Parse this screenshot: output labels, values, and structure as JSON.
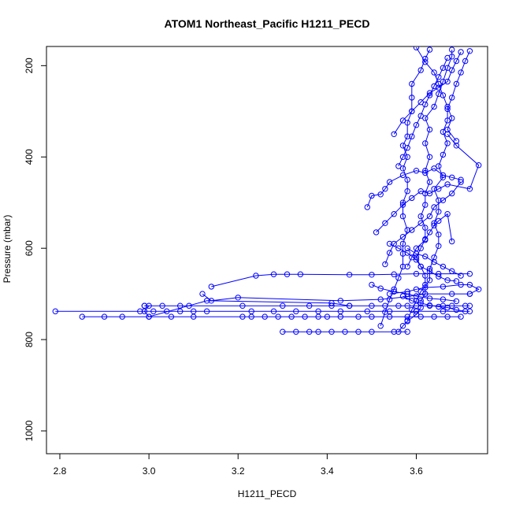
{
  "chart_data": {
    "type": "line",
    "title": "ATOM1 Northeast_Pacific H1211_PECD",
    "xlabel": "H1211_PECD",
    "ylabel": "Pressure (mbar)",
    "xlim": [
      2.77,
      3.76
    ],
    "ylim": [
      1050,
      158
    ],
    "y_reversed": true,
    "grid": false,
    "x_ticks": [
      "2.8",
      "3.0",
      "3.2",
      "3.4",
      "3.6"
    ],
    "y_ticks": [
      "200",
      "400",
      "600",
      "800",
      "1000"
    ],
    "x_tick_values": [
      2.8,
      3.0,
      3.2,
      3.4,
      3.6
    ],
    "y_tick_values": [
      200,
      400,
      600,
      800,
      1000
    ],
    "series": [
      {
        "values": [
          [
            3.58,
            783
          ],
          [
            3.55,
            783
          ],
          [
            3.5,
            783
          ],
          [
            3.47,
            783
          ],
          [
            3.44,
            783
          ],
          [
            3.41,
            783
          ],
          [
            3.38,
            783
          ],
          [
            3.36,
            783
          ],
          [
            3.33,
            783
          ],
          [
            3.3,
            783
          ]
        ]
      },
      {
        "values": [
          [
            2.79,
            738
          ],
          [
            2.98,
            738
          ],
          [
            3.01,
            738
          ],
          [
            3.04,
            738
          ],
          [
            3.07,
            738
          ],
          [
            3.1,
            738
          ],
          [
            3.13,
            738
          ],
          [
            3.23,
            738
          ],
          [
            3.28,
            738
          ],
          [
            3.33,
            738
          ],
          [
            3.38,
            738
          ],
          [
            3.43,
            738
          ],
          [
            3.49,
            738
          ],
          [
            3.54,
            738
          ],
          [
            3.6,
            738
          ],
          [
            3.66,
            738
          ],
          [
            3.72,
            738
          ]
        ]
      },
      {
        "values": [
          [
            2.85,
            750
          ],
          [
            2.9,
            750
          ],
          [
            2.94,
            750
          ],
          [
            3.0,
            750
          ],
          [
            3.05,
            750
          ],
          [
            3.1,
            750
          ],
          [
            3.21,
            750
          ],
          [
            3.23,
            750
          ],
          [
            3.26,
            750
          ],
          [
            3.29,
            750
          ],
          [
            3.32,
            750
          ],
          [
            3.35,
            750
          ],
          [
            3.38,
            750
          ],
          [
            3.4,
            750
          ],
          [
            3.43,
            750
          ],
          [
            3.47,
            750
          ],
          [
            3.5,
            750
          ],
          [
            3.54,
            750
          ],
          [
            3.58,
            750
          ],
          [
            3.61,
            750
          ],
          [
            3.64,
            750
          ],
          [
            3.67,
            750
          ],
          [
            3.7,
            750
          ]
        ]
      },
      {
        "values": [
          [
            2.99,
            726
          ],
          [
            3.03,
            726
          ],
          [
            3.07,
            726
          ],
          [
            3.09,
            726
          ],
          [
            3.21,
            726
          ],
          [
            3.3,
            726
          ],
          [
            3.36,
            726
          ],
          [
            3.41,
            726
          ],
          [
            3.45,
            726
          ],
          [
            3.5,
            726
          ],
          [
            3.53,
            726
          ],
          [
            3.56,
            726
          ],
          [
            3.58,
            726
          ],
          [
            3.6,
            726
          ],
          [
            3.63,
            726
          ],
          [
            3.66,
            726
          ],
          [
            3.68,
            726
          ],
          [
            3.71,
            726
          ],
          [
            3.72,
            726
          ]
        ]
      },
      {
        "values": [
          [
            2.99,
            726
          ],
          [
            3.0,
            726
          ],
          [
            2.99,
            738
          ],
          [
            3.0,
            750
          ],
          [
            3.13,
            715
          ],
          [
            3.41,
            720
          ],
          [
            3.45,
            726
          ]
        ]
      },
      {
        "values": [
          [
            3.12,
            700
          ],
          [
            3.14,
            715
          ],
          [
            3.2,
            708
          ],
          [
            3.43,
            715
          ],
          [
            3.52,
            712
          ],
          [
            3.58,
            706
          ],
          [
            3.62,
            700
          ],
          [
            3.68,
            700
          ],
          [
            3.72,
            700
          ]
        ]
      },
      {
        "values": [
          [
            3.14,
            684
          ],
          [
            3.24,
            660
          ],
          [
            3.28,
            657
          ],
          [
            3.31,
            657
          ],
          [
            3.34,
            657
          ],
          [
            3.45,
            658
          ],
          [
            3.5,
            658
          ],
          [
            3.55,
            657
          ],
          [
            3.6,
            656
          ],
          [
            3.65,
            656
          ],
          [
            3.72,
            656
          ]
        ]
      },
      {
        "values": [
          [
            3.54,
            700
          ],
          [
            3.58,
            695
          ],
          [
            3.6,
            690
          ],
          [
            3.62,
            686
          ],
          [
            3.66,
            684
          ],
          [
            3.7,
            680
          ],
          [
            3.72,
            680
          ],
          [
            3.74,
            690
          ],
          [
            3.72,
            700
          ]
        ]
      },
      {
        "values": [
          [
            3.56,
            783
          ],
          [
            3.57,
            770
          ],
          [
            3.58,
            760
          ],
          [
            3.6,
            745
          ],
          [
            3.61,
            730
          ],
          [
            3.61,
            715
          ],
          [
            3.62,
            700
          ],
          [
            3.62,
            680
          ],
          [
            3.62,
            660
          ],
          [
            3.61,
            640
          ],
          [
            3.6,
            620
          ],
          [
            3.61,
            600
          ],
          [
            3.62,
            580
          ],
          [
            3.62,
            555
          ],
          [
            3.61,
            530
          ],
          [
            3.62,
            505
          ],
          [
            3.62,
            480
          ],
          [
            3.63,
            455
          ],
          [
            3.62,
            430
          ],
          [
            3.63,
            400
          ],
          [
            3.62,
            370
          ],
          [
            3.63,
            340
          ],
          [
            3.62,
            315
          ],
          [
            3.64,
            290
          ],
          [
            3.65,
            262
          ],
          [
            3.66,
            235
          ],
          [
            3.67,
            205
          ],
          [
            3.68,
            180
          ],
          [
            3.68,
            165
          ]
        ]
      },
      {
        "values": [
          [
            3.52,
            770
          ],
          [
            3.53,
            740
          ],
          [
            3.54,
            712
          ],
          [
            3.55,
            690
          ],
          [
            3.56,
            665
          ],
          [
            3.57,
            640
          ],
          [
            3.57,
            612
          ],
          [
            3.57,
            590
          ],
          [
            3.58,
            560
          ],
          [
            3.57,
            530
          ],
          [
            3.57,
            500
          ],
          [
            3.58,
            475
          ],
          [
            3.58,
            450
          ],
          [
            3.57,
            425
          ],
          [
            3.58,
            400
          ],
          [
            3.57,
            375
          ],
          [
            3.58,
            355
          ],
          [
            3.58,
            325
          ],
          [
            3.59,
            300
          ],
          [
            3.59,
            270
          ],
          [
            3.59,
            240
          ],
          [
            3.61,
            210
          ],
          [
            3.62,
            185
          ],
          [
            3.63,
            165
          ]
        ]
      },
      {
        "values": [
          [
            3.58,
            758
          ],
          [
            3.59,
            735
          ],
          [
            3.6,
            715
          ],
          [
            3.61,
            695
          ],
          [
            3.63,
            670
          ],
          [
            3.63,
            645
          ],
          [
            3.64,
            620
          ],
          [
            3.65,
            595
          ],
          [
            3.65,
            570
          ],
          [
            3.64,
            545
          ],
          [
            3.65,
            520
          ],
          [
            3.65,
            495
          ],
          [
            3.64,
            470
          ],
          [
            3.66,
            445
          ],
          [
            3.65,
            420
          ],
          [
            3.66,
            395
          ],
          [
            3.67,
            370
          ],
          [
            3.66,
            345
          ],
          [
            3.67,
            320
          ],
          [
            3.67,
            295
          ],
          [
            3.68,
            270
          ],
          [
            3.69,
            240
          ],
          [
            3.7,
            215
          ],
          [
            3.71,
            190
          ],
          [
            3.72,
            168
          ]
        ]
      },
      {
        "values": [
          [
            3.49,
            510
          ],
          [
            3.5,
            485
          ],
          [
            3.52,
            482
          ],
          [
            3.53,
            470
          ],
          [
            3.54,
            455
          ],
          [
            3.57,
            440
          ],
          [
            3.6,
            430
          ],
          [
            3.62,
            435
          ],
          [
            3.64,
            425
          ],
          [
            3.66,
            440
          ],
          [
            3.68,
            445
          ],
          [
            3.7,
            450
          ]
        ]
      },
      {
        "values": [
          [
            3.51,
            565
          ],
          [
            3.53,
            545
          ],
          [
            3.55,
            525
          ],
          [
            3.57,
            505
          ],
          [
            3.59,
            490
          ],
          [
            3.61,
            475
          ],
          [
            3.63,
            480
          ],
          [
            3.65,
            470
          ],
          [
            3.67,
            460
          ],
          [
            3.72,
            470
          ],
          [
            3.74,
            418
          ],
          [
            3.69,
            375
          ],
          [
            3.67,
            350
          ]
        ]
      },
      {
        "values": [
          [
            3.53,
            635
          ],
          [
            3.54,
            610
          ],
          [
            3.55,
            590
          ],
          [
            3.57,
            575
          ],
          [
            3.59,
            560
          ],
          [
            3.61,
            545
          ],
          [
            3.63,
            530
          ],
          [
            3.64,
            510
          ],
          [
            3.66,
            495
          ],
          [
            3.68,
            480
          ],
          [
            3.7,
            455
          ]
        ]
      },
      {
        "values": [
          [
            3.55,
            350
          ],
          [
            3.57,
            320
          ],
          [
            3.59,
            300
          ],
          [
            3.61,
            280
          ],
          [
            3.63,
            260
          ],
          [
            3.65,
            248
          ],
          [
            3.67,
            235
          ],
          [
            3.68,
            210
          ],
          [
            3.69,
            190
          ],
          [
            3.7,
            170
          ]
        ]
      },
      {
        "values": [
          [
            3.56,
            420
          ],
          [
            3.57,
            400
          ],
          [
            3.58,
            380
          ],
          [
            3.59,
            355
          ],
          [
            3.6,
            330
          ],
          [
            3.61,
            310
          ],
          [
            3.62,
            285
          ],
          [
            3.63,
            265
          ],
          [
            3.64,
            245
          ],
          [
            3.65,
            225
          ],
          [
            3.66,
            205
          ],
          [
            3.67,
            183
          ]
        ]
      },
      {
        "values": [
          [
            3.58,
            600
          ],
          [
            3.6,
            612
          ],
          [
            3.62,
            618
          ],
          [
            3.64,
            630
          ],
          [
            3.66,
            640
          ],
          [
            3.68,
            650
          ],
          [
            3.7,
            660
          ]
        ]
      },
      {
        "values": [
          [
            3.57,
            705
          ],
          [
            3.59,
            715
          ],
          [
            3.61,
            720
          ],
          [
            3.63,
            725
          ],
          [
            3.65,
            728
          ],
          [
            3.67,
            730
          ],
          [
            3.69,
            735
          ],
          [
            3.71,
            738
          ]
        ]
      },
      {
        "values": [
          [
            3.5,
            680
          ],
          [
            3.52,
            688
          ],
          [
            3.55,
            695
          ],
          [
            3.58,
            700
          ],
          [
            3.6,
            705
          ],
          [
            3.63,
            710
          ],
          [
            3.66,
            712
          ],
          [
            3.69,
            716
          ]
        ]
      },
      {
        "values": [
          [
            3.6,
            160
          ],
          [
            3.62,
            192
          ],
          [
            3.64,
            215
          ],
          [
            3.65,
            240
          ],
          [
            3.66,
            265
          ],
          [
            3.67,
            290
          ],
          [
            3.68,
            315
          ],
          [
            3.67,
            340
          ],
          [
            3.69,
            365
          ]
        ]
      },
      {
        "values": [
          [
            3.58,
            640
          ],
          [
            3.59,
            620
          ],
          [
            3.6,
            600
          ],
          [
            3.62,
            582
          ],
          [
            3.63,
            565
          ],
          [
            3.64,
            550
          ],
          [
            3.65,
            540
          ],
          [
            3.67,
            525
          ],
          [
            3.68,
            585
          ]
        ]
      },
      {
        "values": [
          [
            3.54,
            590
          ],
          [
            3.56,
            600
          ],
          [
            3.58,
            610
          ],
          [
            3.6,
            625
          ],
          [
            3.61,
            640
          ],
          [
            3.63,
            650
          ],
          [
            3.65,
            662
          ],
          [
            3.67,
            670
          ],
          [
            3.69,
            672
          ]
        ]
      }
    ]
  }
}
